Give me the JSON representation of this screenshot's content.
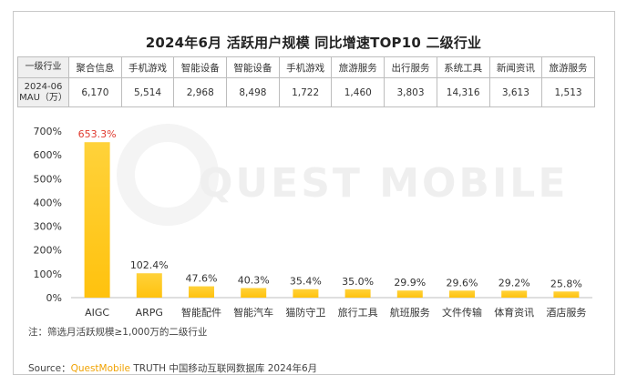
{
  "title": "2024年6月 活跃用户规模 同比增速TOP10 二级行业",
  "table": {
    "header_label": "一级行业",
    "value_label_line1": "2024-06",
    "value_label_line2": "MAU（万）",
    "columns": [
      {
        "industry": "聚合信息",
        "mau": "6,170"
      },
      {
        "industry": "手机游戏",
        "mau": "5,514"
      },
      {
        "industry": "智能设备",
        "mau": "2,968"
      },
      {
        "industry": "智能设备",
        "mau": "8,498"
      },
      {
        "industry": "手机游戏",
        "mau": "1,722"
      },
      {
        "industry": "旅游服务",
        "mau": "1,460"
      },
      {
        "industry": "出行服务",
        "mau": "3,803"
      },
      {
        "industry": "系统工具",
        "mau": "14,316"
      },
      {
        "industry": "新闻资讯",
        "mau": "3,613"
      },
      {
        "industry": "旅游服务",
        "mau": "1,513"
      }
    ]
  },
  "chart_data": {
    "type": "bar",
    "categories": [
      "AIGC",
      "ARPG",
      "智能配件",
      "智能汽车",
      "猫防守卫",
      "旅行工具",
      "航班服务",
      "文件传输",
      "体育资讯",
      "酒店服务"
    ],
    "values": [
      653.3,
      102.4,
      47.6,
      40.3,
      35.4,
      35.0,
      29.9,
      29.6,
      29.2,
      25.8
    ],
    "value_labels": [
      "653.3%",
      "102.4%",
      "47.6%",
      "40.3%",
      "35.4%",
      "35.0%",
      "29.9%",
      "29.6%",
      "29.2%",
      "25.8%"
    ],
    "ylim": [
      0,
      700
    ],
    "yticks": [
      0,
      100,
      200,
      300,
      400,
      500,
      600,
      700
    ],
    "ytick_labels": [
      "0%",
      "100%",
      "200%",
      "300%",
      "400%",
      "500%",
      "600%",
      "700%"
    ],
    "grid": false,
    "bar_color": "#ffc20e",
    "highlight_label_color": "#e03a2f",
    "xlabel": "",
    "ylabel": ""
  },
  "note": "注：筛选月活跃规模≥1,000万的二级行业",
  "watermark": "QUEST MOBILE",
  "source": {
    "prefix": "Source：",
    "brand": "QuestMobile",
    "suffix": " TRUTH 中国移动互联网数据库 2024年6月"
  }
}
